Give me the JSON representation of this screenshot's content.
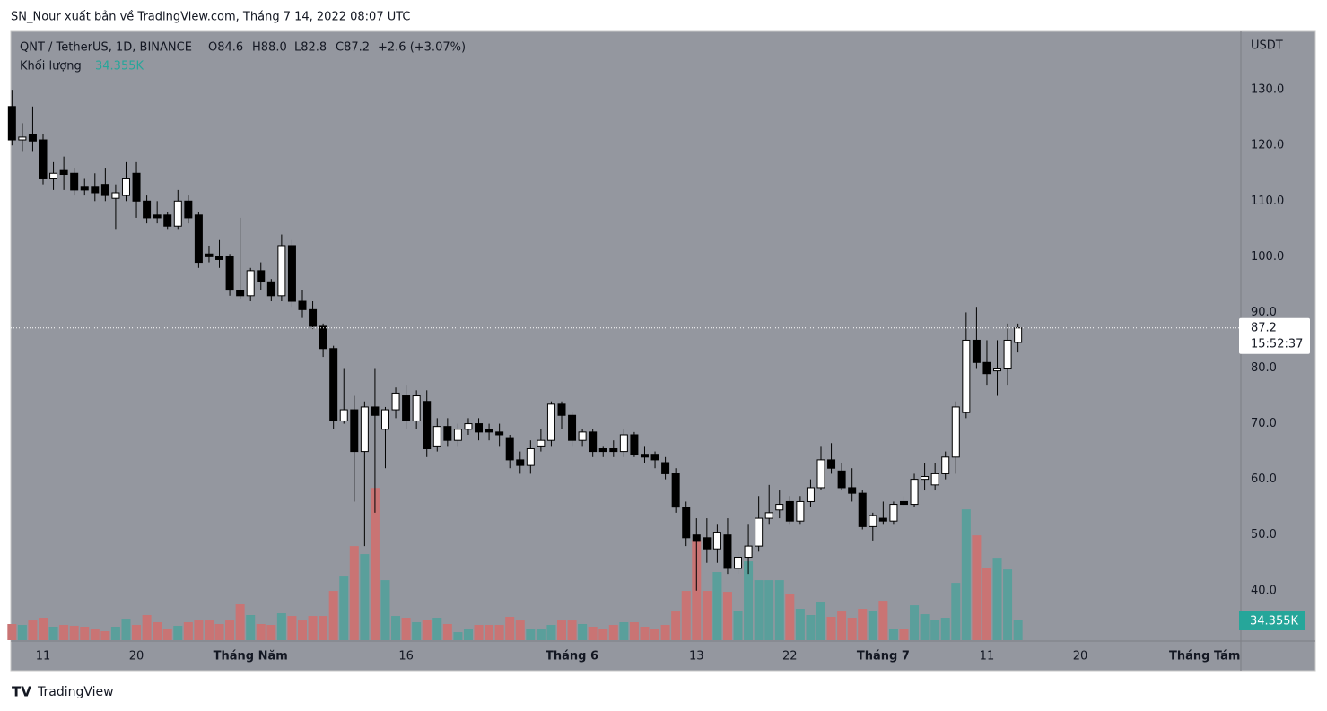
{
  "header": {
    "publisher": "SN_Nour xuất bản về TradingView.com, Tháng 7 14, 2022 08:07 UTC"
  },
  "footer": {
    "brand": "TradingView"
  },
  "chart_data": {
    "type": "candlestick",
    "legend": {
      "symbol": "QNT / TetherUS, 1D, BINANCE",
      "open": "O84.6",
      "high": "H88.0",
      "low": "L82.8",
      "close": "C87.2",
      "change": "+2.6 (+3.07%)",
      "volume_name": "Khối lượng"
    },
    "currency": "USDT",
    "countdown": "15:52:37",
    "volume_last_label": "34.355K",
    "up_color": "#ffffff",
    "down_color": "#000000",
    "volume_up_color": "#5a9f9b",
    "volume_down_color": "#c97474",
    "background": "#94979f",
    "x": [
      "2022-04-08",
      "2022-04-09",
      "2022-04-10",
      "2022-04-11",
      "2022-04-12",
      "2022-04-13",
      "2022-04-14",
      "2022-04-15",
      "2022-04-16",
      "2022-04-17",
      "2022-04-18",
      "2022-04-19",
      "2022-04-20",
      "2022-04-21",
      "2022-04-22",
      "2022-04-23",
      "2022-04-24",
      "2022-04-25",
      "2022-04-26",
      "2022-04-27",
      "2022-04-28",
      "2022-04-29",
      "2022-04-30",
      "2022-05-01",
      "2022-05-02",
      "2022-05-03",
      "2022-05-04",
      "2022-05-05",
      "2022-05-06",
      "2022-05-07",
      "2022-05-08",
      "2022-05-09",
      "2022-05-10",
      "2022-05-11",
      "2022-05-12",
      "2022-05-13",
      "2022-05-14",
      "2022-05-15",
      "2022-05-16",
      "2022-05-17",
      "2022-05-18",
      "2022-05-19",
      "2022-05-20",
      "2022-05-21",
      "2022-05-22",
      "2022-05-23",
      "2022-05-24",
      "2022-05-25",
      "2022-05-26",
      "2022-05-27",
      "2022-05-28",
      "2022-05-29",
      "2022-05-30",
      "2022-05-31",
      "2022-06-01",
      "2022-06-02",
      "2022-06-03",
      "2022-06-04",
      "2022-06-05",
      "2022-06-06",
      "2022-06-07",
      "2022-06-08",
      "2022-06-09",
      "2022-06-10",
      "2022-06-11",
      "2022-06-12",
      "2022-06-13",
      "2022-06-14",
      "2022-06-15",
      "2022-06-16",
      "2022-06-17",
      "2022-06-18",
      "2022-06-19",
      "2022-06-20",
      "2022-06-21",
      "2022-06-22",
      "2022-06-23",
      "2022-06-24",
      "2022-06-25",
      "2022-06-26",
      "2022-06-27",
      "2022-06-28",
      "2022-06-29",
      "2022-06-30",
      "2022-07-01",
      "2022-07-02",
      "2022-07-03",
      "2022-07-04",
      "2022-07-05",
      "2022-07-06",
      "2022-07-07",
      "2022-07-08",
      "2022-07-09",
      "2022-07-10",
      "2022-07-11",
      "2022-07-12",
      "2022-07-13",
      "2022-07-14"
    ],
    "ohlc": [
      [
        127,
        130,
        120,
        121
      ],
      [
        121,
        124,
        119,
        121.5
      ],
      [
        122,
        127,
        119,
        120.8
      ],
      [
        121,
        122,
        113,
        114
      ],
      [
        114,
        117,
        112,
        115
      ],
      [
        115.5,
        118,
        112,
        114.8
      ],
      [
        115,
        116,
        111,
        112
      ],
      [
        112.5,
        114,
        111,
        112
      ],
      [
        112.5,
        115,
        110,
        111.5
      ],
      [
        113,
        116,
        110,
        111
      ],
      [
        110.5,
        113,
        105,
        111.5
      ],
      [
        111,
        117,
        110,
        114
      ],
      [
        115,
        117,
        107,
        110
      ],
      [
        110,
        111,
        106,
        107
      ],
      [
        107.5,
        110,
        106,
        107
      ],
      [
        107.5,
        108,
        105,
        105.5
      ],
      [
        105.5,
        112,
        105,
        110
      ],
      [
        110,
        111,
        106,
        107
      ],
      [
        107.5,
        108,
        98,
        99
      ],
      [
        100.5,
        102,
        99,
        100
      ],
      [
        100,
        103,
        98,
        99.5
      ],
      [
        100,
        100.5,
        93,
        94
      ],
      [
        94,
        107,
        92.5,
        93
      ],
      [
        93,
        98,
        92,
        97.5
      ],
      [
        97.5,
        99,
        94,
        95.5
      ],
      [
        95.5,
        96,
        92,
        93
      ],
      [
        93,
        104,
        92,
        102
      ],
      [
        102,
        103,
        91,
        92
      ],
      [
        92,
        94,
        89,
        90.5
      ],
      [
        90.5,
        92,
        87,
        87.5
      ],
      [
        87.5,
        88,
        82,
        83.5
      ],
      [
        83.5,
        84,
        69,
        70.5
      ],
      [
        70.5,
        80,
        70,
        72.5
      ],
      [
        72.5,
        75,
        56,
        65
      ],
      [
        65,
        74,
        48,
        73
      ],
      [
        73,
        80,
        54,
        71.5
      ],
      [
        69,
        73,
        62,
        72.5
      ],
      [
        72.5,
        76.5,
        71,
        75.5
      ],
      [
        75,
        77,
        69,
        70.5
      ],
      [
        70.5,
        76,
        69,
        75
      ],
      [
        74,
        76,
        64,
        65.5
      ],
      [
        66,
        71,
        65,
        69.5
      ],
      [
        69.5,
        71,
        66,
        67
      ],
      [
        67,
        70,
        66,
        69
      ],
      [
        69,
        71,
        68,
        70
      ],
      [
        70,
        71,
        67,
        68.5
      ],
      [
        69,
        70,
        67,
        68.5
      ],
      [
        68.5,
        70,
        66,
        68
      ],
      [
        67.5,
        68,
        62,
        63.5
      ],
      [
        63.5,
        65,
        61,
        62.5
      ],
      [
        62.5,
        67,
        61,
        65.5
      ],
      [
        66,
        69,
        65,
        67
      ],
      [
        67,
        74,
        66,
        73.5
      ],
      [
        73.5,
        74,
        69,
        71.5
      ],
      [
        71.5,
        72,
        66,
        67
      ],
      [
        67,
        69,
        66,
        68.5
      ],
      [
        68.5,
        69,
        64,
        65
      ],
      [
        65.5,
        66,
        64,
        65
      ],
      [
        65.5,
        67,
        64,
        65
      ],
      [
        65,
        69,
        64,
        68
      ],
      [
        68,
        68.5,
        64,
        64.5
      ],
      [
        64.5,
        66,
        63,
        64
      ],
      [
        64.5,
        65,
        62,
        63.5
      ],
      [
        63,
        64,
        60,
        61
      ],
      [
        61,
        62,
        54,
        55
      ],
      [
        55,
        56,
        48,
        49.5
      ],
      [
        50,
        53,
        40,
        49
      ],
      [
        49.5,
        53,
        45,
        47.5
      ],
      [
        47.5,
        52,
        45,
        50.5
      ],
      [
        50,
        53,
        43,
        44
      ],
      [
        44,
        47,
        43,
        46
      ],
      [
        46,
        52,
        43,
        48
      ],
      [
        48,
        57,
        47,
        53
      ],
      [
        53,
        59,
        52,
        54
      ],
      [
        54.5,
        58,
        53,
        55.5
      ],
      [
        56,
        57,
        52,
        52.5
      ],
      [
        52.5,
        57,
        52,
        56
      ],
      [
        56,
        60,
        55,
        58.5
      ],
      [
        58.5,
        66,
        58,
        63.5
      ],
      [
        63.5,
        66.5,
        61,
        62
      ],
      [
        61.5,
        63,
        58,
        58.5
      ],
      [
        58.5,
        62,
        56,
        57.5
      ],
      [
        57.5,
        58,
        51,
        51.5
      ],
      [
        51.5,
        54,
        49,
        53.5
      ],
      [
        53,
        56,
        52,
        52.5
      ],
      [
        52.5,
        56,
        52,
        55.5
      ],
      [
        56,
        57,
        55,
        55.5
      ],
      [
        55.5,
        61,
        55,
        60
      ],
      [
        60,
        63,
        58,
        60.5
      ],
      [
        59,
        63,
        58,
        61
      ],
      [
        61,
        65,
        60,
        64
      ],
      [
        64,
        74,
        61,
        73
      ],
      [
        72,
        90,
        71,
        85
      ],
      [
        85,
        91,
        80,
        81
      ],
      [
        81,
        85,
        77,
        79
      ],
      [
        79.5,
        85,
        75,
        80
      ],
      [
        80,
        88,
        77,
        85
      ],
      [
        84.6,
        88,
        82.8,
        87.2
      ]
    ],
    "volume": [
      28.1,
      26.5,
      34.3,
      39,
      23.4,
      26.5,
      25,
      23.4,
      18.7,
      15.6,
      23.4,
      37.4,
      26.5,
      43.7,
      31.2,
      20.3,
      25,
      31.2,
      34.3,
      34.3,
      28.1,
      34.3,
      62.4,
      43.7,
      28.1,
      26.5,
      46.8,
      42.1,
      34.3,
      42.1,
      42.1,
      85.8,
      112.3,
      163.8,
      149.8,
      265.2,
      104.5,
      42.1,
      39,
      31.2,
      35.9,
      39,
      28.1,
      14,
      18.7,
      26.5,
      26.5,
      26.5,
      40.6,
      34.3,
      18.7,
      18.7,
      26.5,
      34.3,
      34.3,
      28.1,
      23.4,
      20.3,
      26.5,
      31.2,
      31.2,
      23.4,
      18.7,
      26.5,
      49.9,
      85.8,
      174.7,
      85.8,
      118.6,
      84.2,
      51.5,
      137.3,
      104.5,
      104.5,
      104.5,
      79.6,
      54.6,
      43.7,
      67.1,
      40.6,
      49.9,
      39,
      54.6,
      51.5,
      68.6,
      20.3,
      20.3,
      60.8,
      45.2,
      35.9,
      39,
      99.8,
      227.8,
      182.5,
      126.4,
      143.5,
      123.2,
      34.355
    ],
    "ylim": [
      31.1,
      140.5
    ],
    "yticks": [
      {
        "value": 40,
        "label": "40.0"
      },
      {
        "value": 50,
        "label": "50.0"
      },
      {
        "value": 60,
        "label": "60.0"
      },
      {
        "value": 70,
        "label": "70.0"
      },
      {
        "value": 80,
        "label": "80.0"
      },
      {
        "value": 90,
        "label": "90.0"
      },
      {
        "value": 100,
        "label": "100.0"
      },
      {
        "value": 110,
        "label": "110.0"
      },
      {
        "value": 120,
        "label": "120.0"
      },
      {
        "value": 130,
        "label": "130.0"
      }
    ],
    "xticks": [
      {
        "value": "2022-04-11",
        "label": "11"
      },
      {
        "value": "2022-04-20",
        "label": "20"
      },
      {
        "value": "2022-05-01",
        "label": "Tháng Năm"
      },
      {
        "value": "2022-05-16",
        "label": "16"
      },
      {
        "value": "2022-06-01",
        "label": "Tháng 6"
      },
      {
        "value": "2022-06-13",
        "label": "13"
      },
      {
        "value": "2022-06-22",
        "label": "22"
      },
      {
        "value": "2022-07-01",
        "label": "Tháng 7"
      },
      {
        "value": "2022-07-11",
        "label": "11"
      },
      {
        "value": "2022-07-20",
        "label": "20"
      },
      {
        "value": "2022-08-01",
        "label": "Tháng Tám"
      }
    ]
  }
}
